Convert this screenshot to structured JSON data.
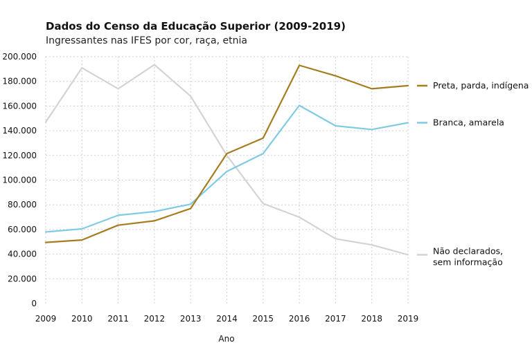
{
  "chart_data": {
    "type": "line",
    "title": "Dados do Censo da Educação Superior (2009-2019)",
    "subtitle": "Ingressantes nas IFES por cor, raça, etnia",
    "xlabel": "Ano",
    "ylabel": "",
    "x": [
      2009,
      2010,
      2011,
      2012,
      2013,
      2014,
      2015,
      2016,
      2017,
      2018,
      2019
    ],
    "x_tick_labels": [
      "2009",
      "2010",
      "2011",
      "2012",
      "2013",
      "2014",
      "2015",
      "2016",
      "2017",
      "2018",
      "2019"
    ],
    "ylim": [
      0,
      200000
    ],
    "y_ticks": [
      0,
      20000,
      40000,
      60000,
      80000,
      100000,
      120000,
      140000,
      160000,
      180000,
      200000
    ],
    "y_tick_labels": [
      "0",
      "20.000",
      "40.000",
      "60.000",
      "80.000",
      "100.000",
      "120.000",
      "140.000",
      "160.000",
      "180.000",
      "200.000"
    ],
    "grid": true,
    "legend_position": "right",
    "series": [
      {
        "name": "Preta, parda, indígena",
        "color": "#a67c1f",
        "values": [
          49500,
          51500,
          63500,
          67000,
          77000,
          121500,
          134000,
          193000,
          184500,
          174000,
          176500
        ]
      },
      {
        "name": "Branca, amarela",
        "color": "#7fcbe3",
        "values": [
          58000,
          60500,
          71500,
          74500,
          80500,
          107000,
          121500,
          160500,
          144000,
          141000,
          146500
        ]
      },
      {
        "name": "Não declarados,",
        "name_line2": "sem informação",
        "color": "#d3d3d3",
        "values": [
          147000,
          191000,
          174000,
          193500,
          168000,
          120000,
          81000,
          70000,
          52500,
          47500,
          39500
        ]
      }
    ]
  }
}
